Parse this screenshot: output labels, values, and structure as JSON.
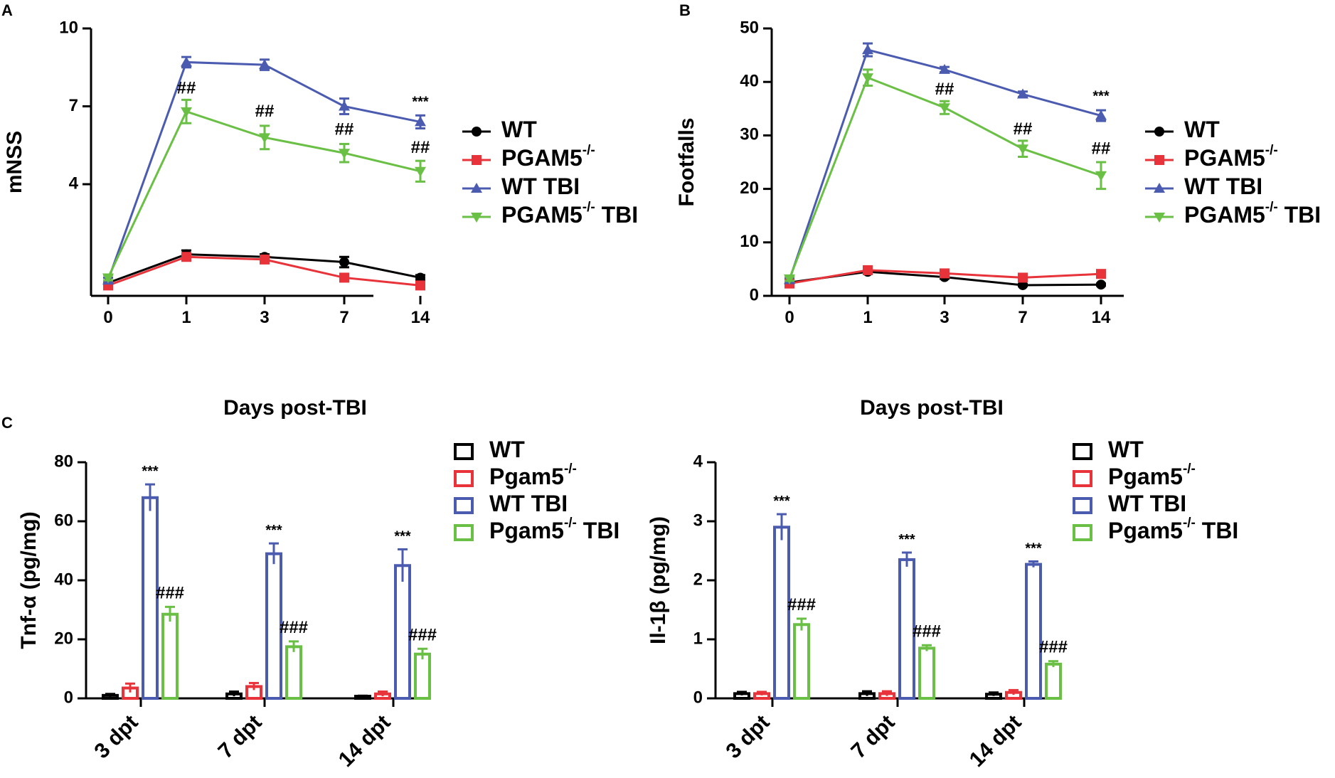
{
  "chart_data": [
    {
      "id": "A",
      "panel_label": "A",
      "type": "line",
      "xlabel": "Days post-TBI",
      "ylabel": "mNSS",
      "categories": [
        "0",
        "1",
        "3",
        "7",
        "14"
      ],
      "ylim": [
        0,
        10
      ],
      "yticks": [
        "4",
        "7",
        "10"
      ],
      "series": [
        {
          "name": "WT",
          "sup": "",
          "suffix": "",
          "color": "#000000",
          "marker": "circle",
          "values": [
            0.2,
            1.3,
            1.2,
            1.0,
            0.4
          ],
          "errors": [
            0.1,
            0.15,
            0.1,
            0.2,
            0.1
          ]
        },
        {
          "name": "PGAM5",
          "sup": "-/-",
          "suffix": "",
          "color": "#e8333a",
          "marker": "square",
          "values": [
            0.1,
            1.2,
            1.1,
            0.4,
            0.1
          ],
          "errors": [
            0.1,
            0.1,
            0.1,
            0.1,
            0.05
          ]
        },
        {
          "name": "WT TBI",
          "sup": "",
          "suffix": "",
          "color": "#4b5bb0",
          "marker": "triangle-up",
          "values": [
            0.3,
            8.7,
            8.6,
            7.0,
            6.4
          ],
          "errors": [
            0.1,
            0.2,
            0.2,
            0.3,
            0.25
          ]
        },
        {
          "name": "PGAM5",
          "sup": "-/-",
          "suffix": " TBI",
          "color": "#6abf45",
          "marker": "triangle-down",
          "values": [
            0.4,
            6.8,
            5.8,
            5.2,
            4.5
          ],
          "errors": [
            0.1,
            0.45,
            0.45,
            0.35,
            0.4
          ]
        }
      ],
      "annotations": [
        {
          "text": "##",
          "category": "1",
          "y": 7.5
        },
        {
          "text": "##",
          "category": "3",
          "y": 6.6
        },
        {
          "text": "##",
          "category": "7",
          "y": 5.9
        },
        {
          "text": "##",
          "category": "14",
          "y": 5.2
        },
        {
          "text": "***",
          "category": "14",
          "y": 7.0
        }
      ]
    },
    {
      "id": "B",
      "panel_label": "B",
      "type": "line",
      "xlabel": "Days post-TBI",
      "ylabel": "Footfalls",
      "categories": [
        "0",
        "1",
        "3",
        "7",
        "14"
      ],
      "ylim": [
        0,
        50
      ],
      "yticks": [
        "0",
        "10",
        "20",
        "30",
        "40",
        "50"
      ],
      "series": [
        {
          "name": "WT",
          "sup": "",
          "suffix": "",
          "color": "#000000",
          "marker": "circle",
          "values": [
            2.5,
            4.5,
            3.5,
            2.0,
            2.1
          ],
          "errors": [
            0.3,
            0.4,
            0.3,
            0.2,
            0.2
          ]
        },
        {
          "name": "PGAM5",
          "sup": "-/-",
          "suffix": "",
          "color": "#e8333a",
          "marker": "square",
          "values": [
            2.3,
            4.8,
            4.2,
            3.4,
            4.1
          ],
          "errors": [
            0.3,
            0.3,
            0.3,
            0.3,
            0.3
          ]
        },
        {
          "name": "WT TBI",
          "sup": "",
          "suffix": "",
          "color": "#4b5bb0",
          "marker": "triangle-up",
          "values": [
            3.0,
            46.0,
            42.3,
            37.7,
            33.7
          ],
          "errors": [
            0.4,
            1.2,
            0.5,
            0.5,
            1.0
          ]
        },
        {
          "name": "PGAM5",
          "sup": "-/-",
          "suffix": " TBI",
          "color": "#6abf45",
          "marker": "triangle-down",
          "values": [
            3.2,
            40.8,
            35.2,
            27.5,
            22.5
          ],
          "errors": [
            0.4,
            1.5,
            1.2,
            1.5,
            2.5
          ]
        }
      ],
      "annotations": [
        {
          "text": "##",
          "category": "3",
          "y": 37.6
        },
        {
          "text": "##",
          "category": "7",
          "y": 30.2
        },
        {
          "text": "##",
          "category": "14",
          "y": 26.5
        },
        {
          "text": "***",
          "category": "14",
          "y": 36.5
        }
      ]
    },
    {
      "id": "C1",
      "panel_label": "C",
      "type": "bar",
      "xlabel": "",
      "ylabel": "Tnf-α (pg/mg)",
      "categories": [
        "3 dpt",
        "7 dpt",
        "14 dpt"
      ],
      "ylim": [
        0,
        80
      ],
      "yticks": [
        "0",
        "20",
        "40",
        "60",
        "80"
      ],
      "series": [
        {
          "name": "WT",
          "sup": "",
          "suffix": "",
          "color": "#000000",
          "values": [
            1.0,
            1.5,
            0.5
          ],
          "errors": [
            0.5,
            0.8,
            0.4
          ]
        },
        {
          "name": "Pgam5",
          "sup": "-/-",
          "suffix": "",
          "color": "#e8333a",
          "values": [
            3.5,
            4.0,
            1.5
          ],
          "errors": [
            1.5,
            1.2,
            0.8
          ]
        },
        {
          "name": "WT TBI",
          "sup": "",
          "suffix": "",
          "color": "#4b5bb0",
          "values": [
            68,
            49,
            45
          ],
          "errors": [
            4.5,
            3.5,
            5.5
          ]
        },
        {
          "name": "Pgam5",
          "sup": "-/-",
          "suffix": " TBI",
          "color": "#6abf45",
          "values": [
            28.5,
            17.5,
            15
          ],
          "errors": [
            2.5,
            1.8,
            1.8
          ]
        }
      ],
      "annotations": [
        {
          "text": "***",
          "category": 0,
          "series": 2
        },
        {
          "text": "###",
          "category": 0,
          "series": 3
        },
        {
          "text": "***",
          "category": 1,
          "series": 2
        },
        {
          "text": "###",
          "category": 1,
          "series": 3
        },
        {
          "text": "***",
          "category": 2,
          "series": 2
        },
        {
          "text": "###",
          "category": 2,
          "series": 3
        }
      ]
    },
    {
      "id": "C2",
      "panel_label": "",
      "type": "bar",
      "xlabel": "",
      "ylabel": "Il-1β (pg/mg)",
      "categories": [
        "3 dpt",
        "7 dpt",
        "14 dpt"
      ],
      "ylim": [
        0,
        4
      ],
      "yticks": [
        "0",
        "1",
        "2",
        "3",
        "4"
      ],
      "series": [
        {
          "name": "WT",
          "sup": "",
          "suffix": "",
          "color": "#000000",
          "values": [
            0.08,
            0.08,
            0.07
          ],
          "errors": [
            0.03,
            0.04,
            0.03
          ]
        },
        {
          "name": "Pgam5",
          "sup": "-/-",
          "suffix": "",
          "color": "#e8333a",
          "values": [
            0.08,
            0.08,
            0.1
          ],
          "errors": [
            0.03,
            0.04,
            0.04
          ]
        },
        {
          "name": "WT TBI",
          "sup": "",
          "suffix": "",
          "color": "#4b5bb0",
          "values": [
            2.9,
            2.35,
            2.27
          ],
          "errors": [
            0.22,
            0.12,
            0.05
          ]
        },
        {
          "name": "Pgam5",
          "sup": "-/-",
          "suffix": " TBI",
          "color": "#6abf45",
          "values": [
            1.25,
            0.85,
            0.58
          ],
          "errors": [
            0.1,
            0.05,
            0.05
          ]
        }
      ],
      "annotations": [
        {
          "text": "***",
          "category": 0,
          "series": 2
        },
        {
          "text": "###",
          "category": 0,
          "series": 3
        },
        {
          "text": "***",
          "category": 1,
          "series": 2
        },
        {
          "text": "###",
          "category": 1,
          "series": 3
        },
        {
          "text": "***",
          "category": 2,
          "series": 2
        },
        {
          "text": "###",
          "category": 2,
          "series": 3
        }
      ]
    }
  ]
}
